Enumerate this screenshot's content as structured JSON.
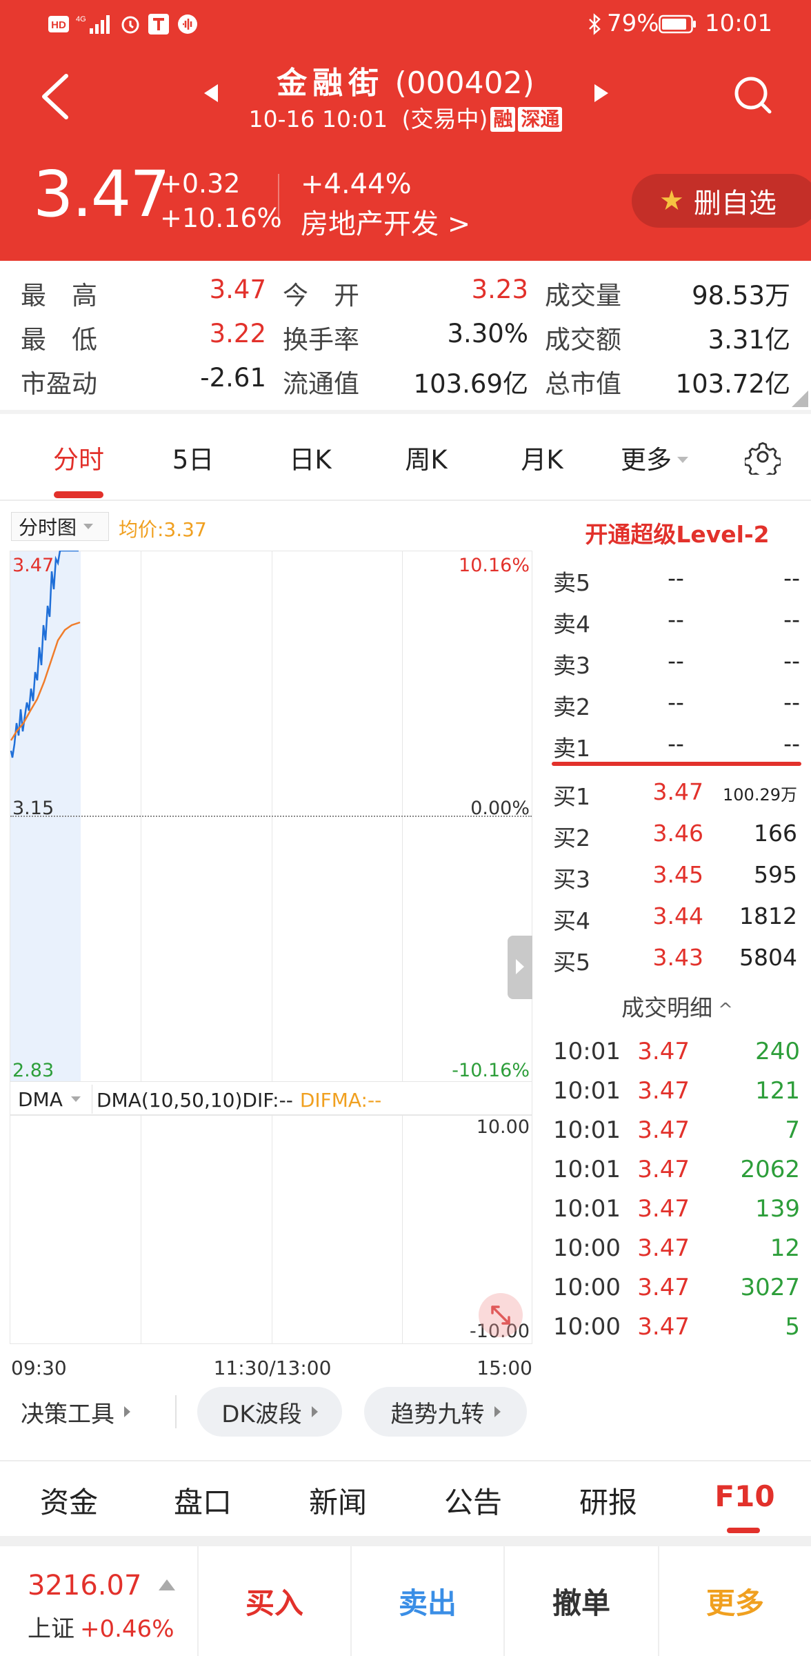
{
  "status_bar": {
    "time": "10:01",
    "battery": "79%"
  },
  "header": {
    "name": "金融街",
    "code": "(000402)",
    "datetime": "10-16 10:01",
    "state": "(交易中)",
    "tag_margin": "融",
    "tag_connect": "深通"
  },
  "quote": {
    "price": "3.47",
    "change": "+0.32",
    "change_pct": "+10.16%",
    "sector_change": "+4.44%",
    "sector": "房地产开发 >",
    "fav_label": "删自选"
  },
  "stats": [
    {
      "label": "最　高",
      "value": "3.47"
    },
    {
      "label": "今　开",
      "value": "3.23"
    },
    {
      "label": "成交量",
      "value": "98.53万"
    },
    {
      "label": "最　低",
      "value": "3.22"
    },
    {
      "label": "换手率",
      "value": "3.30%"
    },
    {
      "label": "成交额",
      "value": "3.31亿"
    },
    {
      "label": "市盈动",
      "value": "-2.61"
    },
    {
      "label": "流通值",
      "value": "103.69亿"
    },
    {
      "label": "总市值",
      "value": "103.72亿"
    }
  ],
  "tabs": [
    "分时",
    "5日",
    "日K",
    "周K",
    "月K",
    "更多"
  ],
  "chart": {
    "mode": "分时图",
    "avg_label": "均价:3.37",
    "y_top": "3.47",
    "y_mid": "3.15",
    "y_bot": "2.83",
    "pct_top": "10.16%",
    "pct_mid": "0.00%",
    "pct_bot": "-10.16%",
    "indicator": "DMA",
    "dma_params": "DMA(10,50,10)DIF:--",
    "difma": "DIFMA:--",
    "dma_top": "10.00",
    "dma_bot": "-10.00",
    "x_start": "09:30",
    "x_mid": "11:30/13:00",
    "x_end": "15:00"
  },
  "tools": [
    "决策工具",
    "DK波段",
    "趋势九转"
  ],
  "level2": "开通超级Level-2",
  "order_book": {
    "asks": [
      {
        "label": "卖5",
        "price": "--",
        "vol": "--"
      },
      {
        "label": "卖4",
        "price": "--",
        "vol": "--"
      },
      {
        "label": "卖3",
        "price": "--",
        "vol": "--"
      },
      {
        "label": "卖2",
        "price": "--",
        "vol": "--"
      },
      {
        "label": "卖1",
        "price": "--",
        "vol": "--"
      }
    ],
    "bids": [
      {
        "label": "买1",
        "price": "3.47",
        "vol": "100.29万"
      },
      {
        "label": "买2",
        "price": "3.46",
        "vol": "166"
      },
      {
        "label": "买3",
        "price": "3.45",
        "vol": "595"
      },
      {
        "label": "买4",
        "price": "3.44",
        "vol": "1812"
      },
      {
        "label": "买5",
        "price": "3.43",
        "vol": "5804"
      }
    ]
  },
  "trades_title": "成交明细",
  "trades": [
    {
      "time": "10:01",
      "price": "3.47",
      "vol": "240"
    },
    {
      "time": "10:01",
      "price": "3.47",
      "vol": "121"
    },
    {
      "time": "10:01",
      "price": "3.47",
      "vol": "7"
    },
    {
      "time": "10:01",
      "price": "3.47",
      "vol": "2062"
    },
    {
      "time": "10:01",
      "price": "3.47",
      "vol": "139"
    },
    {
      "time": "10:00",
      "price": "3.47",
      "vol": "12"
    },
    {
      "time": "10:00",
      "price": "3.47",
      "vol": "3027"
    },
    {
      "time": "10:00",
      "price": "3.47",
      "vol": "5"
    }
  ],
  "bottom_tabs": [
    "资金",
    "盘口",
    "新闻",
    "公告",
    "研报",
    "F10"
  ],
  "index": {
    "value": "3216.07",
    "name": "上证",
    "change_pct": "+0.46%"
  },
  "trade_buttons": [
    "买入",
    "卖出",
    "撤单",
    "更多"
  ],
  "colors": {
    "header_red": "#e7392f",
    "up": "#e2312b",
    "down": "#2d9e3a",
    "price_line": "#1f6fd8",
    "avg_line": "#f07c2a",
    "sell_blue": "#3a8ee6",
    "more_orange": "#f0a020"
  }
}
